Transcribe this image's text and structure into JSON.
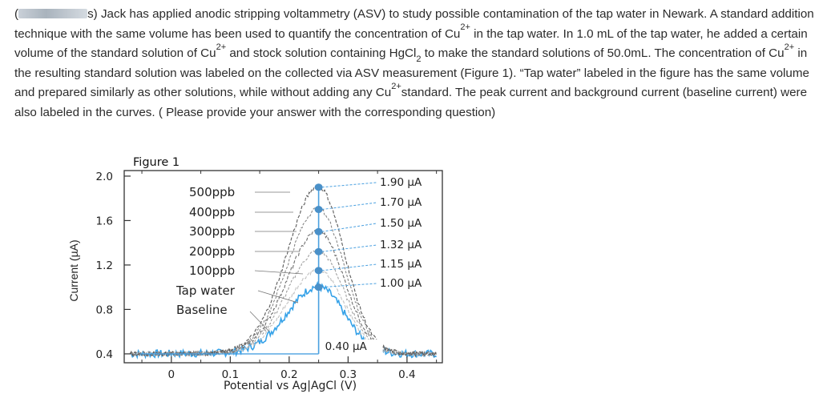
{
  "question": {
    "number_label": "(",
    "number_suffix": "s)",
    "seg1": " Jack has applied anodic stripping voltammetry (ASV) to study possible contamination of the tap water in Newark. A standard addition technique with the same volume has been used to quantify the concentration of Cu",
    "sup1": "2+",
    "seg2": " in the tap water. In 1.0 mL of the tap water, he added a certain volume of the standard solution of Cu",
    "sup2": "2+",
    "seg3": " and stock solution containing HgCl",
    "sub3": "2",
    "seg4": " to make the standard solutions of 50.0mL. The concentration of Cu",
    "sup4": "2+",
    "seg5": " in the resulting standard solution was labeled on the collected via ASV measurement (Figure 1). “Tap water” labeled in the figure has the same volume and prepared similarly as other solutions, while without adding any Cu",
    "sup5": "2+",
    "seg6": "standard. The peak current and background current (baseline current) were also labeled in the curves.  ( Please provide your answer with the corresponding question)"
  },
  "chart_data": {
    "type": "line",
    "title": "Figure 1",
    "xlabel": "Potential vs Ag|AgCl (V)",
    "ylabel": "Current (µA)",
    "x_ticks": [
      "0",
      "0.1",
      "0.2",
      "0.3",
      "0.4"
    ],
    "y_ticks": [
      "2.0",
      "1.6",
      "1.2",
      "0.8",
      "0.4"
    ],
    "xlim": [
      -0.08,
      0.46
    ],
    "ylim": [
      0.32,
      2.05
    ],
    "peak_potential": 0.25,
    "series": [
      {
        "name": "500ppb",
        "peak_current": 1.9,
        "peak_label": "1.90 µA",
        "color": "#5a5a5a"
      },
      {
        "name": "400ppb",
        "peak_current": 1.7,
        "peak_label": "1.70 µA",
        "color": "#888888"
      },
      {
        "name": "300ppb",
        "peak_current": 1.5,
        "peak_label": "1.50 µA",
        "color": "#6f6f6f"
      },
      {
        "name": "200ppb",
        "peak_current": 1.32,
        "peak_label": "1.32 µA",
        "color": "#a0a0a0"
      },
      {
        "name": "100ppb",
        "peak_current": 1.15,
        "peak_label": "1.15 µA",
        "color": "#c2c2c2"
      },
      {
        "name": "Tap water",
        "peak_current": 1.0,
        "peak_label": "1.00 µA",
        "color": "#36a2e8"
      }
    ],
    "baseline": {
      "name": "Baseline",
      "current": 0.4,
      "label": "0.40 µA"
    },
    "colors": {
      "axis": "#333333",
      "marker": "#4a90c8",
      "guide": "#4aa0e0"
    }
  }
}
